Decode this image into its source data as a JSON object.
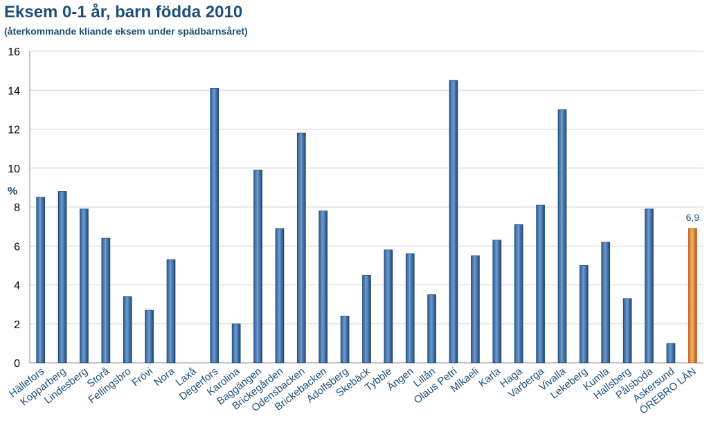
{
  "chart_data": {
    "type": "bar",
    "title": "Eksem 0-1 år, barn födda 2010",
    "subtitle": "(återkommande kliande eksem under spädbarnsåret)",
    "ylabel": "%",
    "xlabel": "",
    "ylim": [
      0,
      16
    ],
    "yticks": [
      0,
      2,
      4,
      6,
      8,
      10,
      12,
      14,
      16
    ],
    "grid": true,
    "legend": "none",
    "categories": [
      "Hällefors",
      "Kopparberg",
      "Lindesberg",
      "Storå",
      "Fellingsbro",
      "Frövi",
      "Nora",
      "Laxå",
      "Degerfors",
      "Karolina",
      "Baggängen",
      "Brickegården",
      "Odensbacken",
      "Brickebacken",
      "Adolfsberg",
      "Skebäck",
      "Tybble",
      "Ängen",
      "Lillån",
      "Olaus Petri",
      "Mikaeli",
      "Karla",
      "Haga",
      "Varberga",
      "Vivalla",
      "Lekeberg",
      "Kumla",
      "Hallsberg",
      "Pålsboda",
      "Askersund",
      "ÖREBRO LÄN"
    ],
    "values": [
      8.5,
      8.8,
      7.9,
      6.4,
      3.4,
      2.7,
      5.3,
      0,
      14.1,
      2.0,
      9.9,
      6.9,
      11.8,
      7.8,
      2.4,
      4.5,
      5.8,
      5.6,
      3.5,
      14.5,
      5.5,
      6.3,
      7.1,
      8.1,
      13.0,
      5.0,
      6.2,
      3.3,
      7.9,
      1.0,
      6.9
    ],
    "highlight_index": 30,
    "data_labels": {
      "30": "6,9"
    },
    "colors": {
      "bar": "#4f81bd",
      "bar_dark": "#1f4e79",
      "highlight": "#f79646",
      "highlight_dark": "#b65708",
      "grid": "#d0d0d0",
      "text": "#1f4e79"
    }
  }
}
